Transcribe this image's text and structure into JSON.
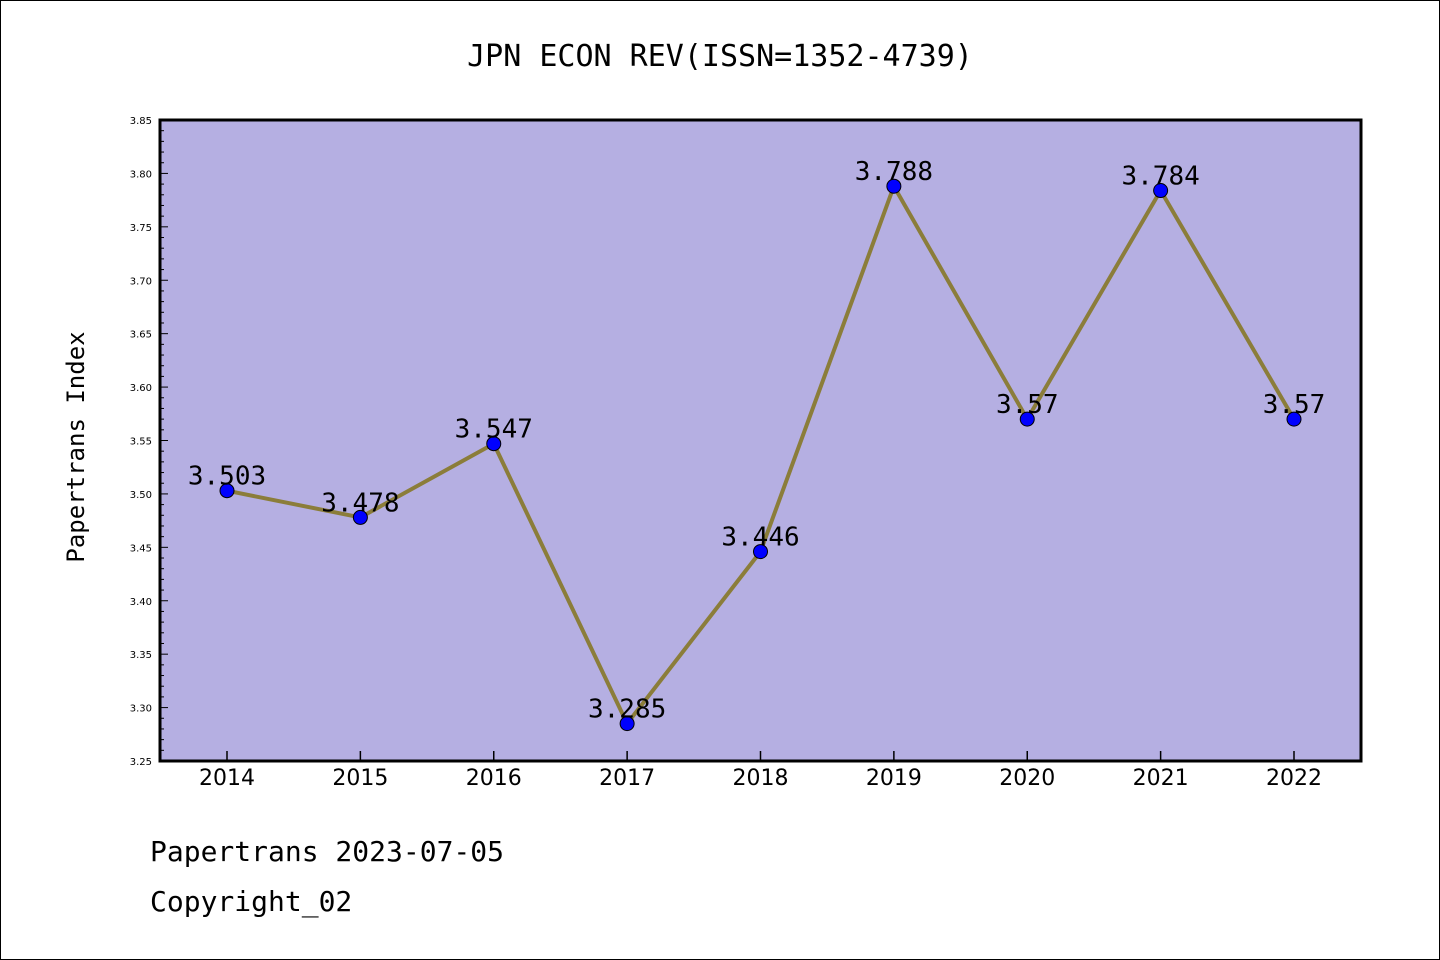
{
  "chart_data": {
    "type": "line",
    "title": "JPN ECON REV(ISSN=1352-4739)",
    "xlabel": "",
    "ylabel": "Papertrans Index",
    "categories": [
      "2014",
      "2015",
      "2016",
      "2017",
      "2018",
      "2019",
      "2020",
      "2021",
      "2022"
    ],
    "series": [
      {
        "values": [
          3.503,
          3.478,
          3.547,
          3.285,
          3.446,
          3.788,
          3.57,
          3.784,
          3.57
        ],
        "data_labels": [
          "3.503",
          "3.478",
          "3.547",
          "3.285",
          "3.446",
          "3.788",
          "3.57",
          "3.784",
          "3.57"
        ]
      }
    ],
    "ylim": [
      3.25,
      3.85
    ],
    "yticks": [
      "3.25",
      "3.30",
      "3.35",
      "3.40",
      "3.45",
      "3.50",
      "3.55",
      "3.60",
      "3.65",
      "3.70",
      "3.75",
      "3.80",
      "3.85"
    ],
    "grid": false,
    "legend": "none",
    "colors": {
      "plot_background": "#b5afe2",
      "line": "#8b7d3a",
      "marker": "#0000ff"
    }
  },
  "footer": {
    "date_line": "Papertrans 2023-07-05",
    "copyright_line": "Copyright_02"
  }
}
